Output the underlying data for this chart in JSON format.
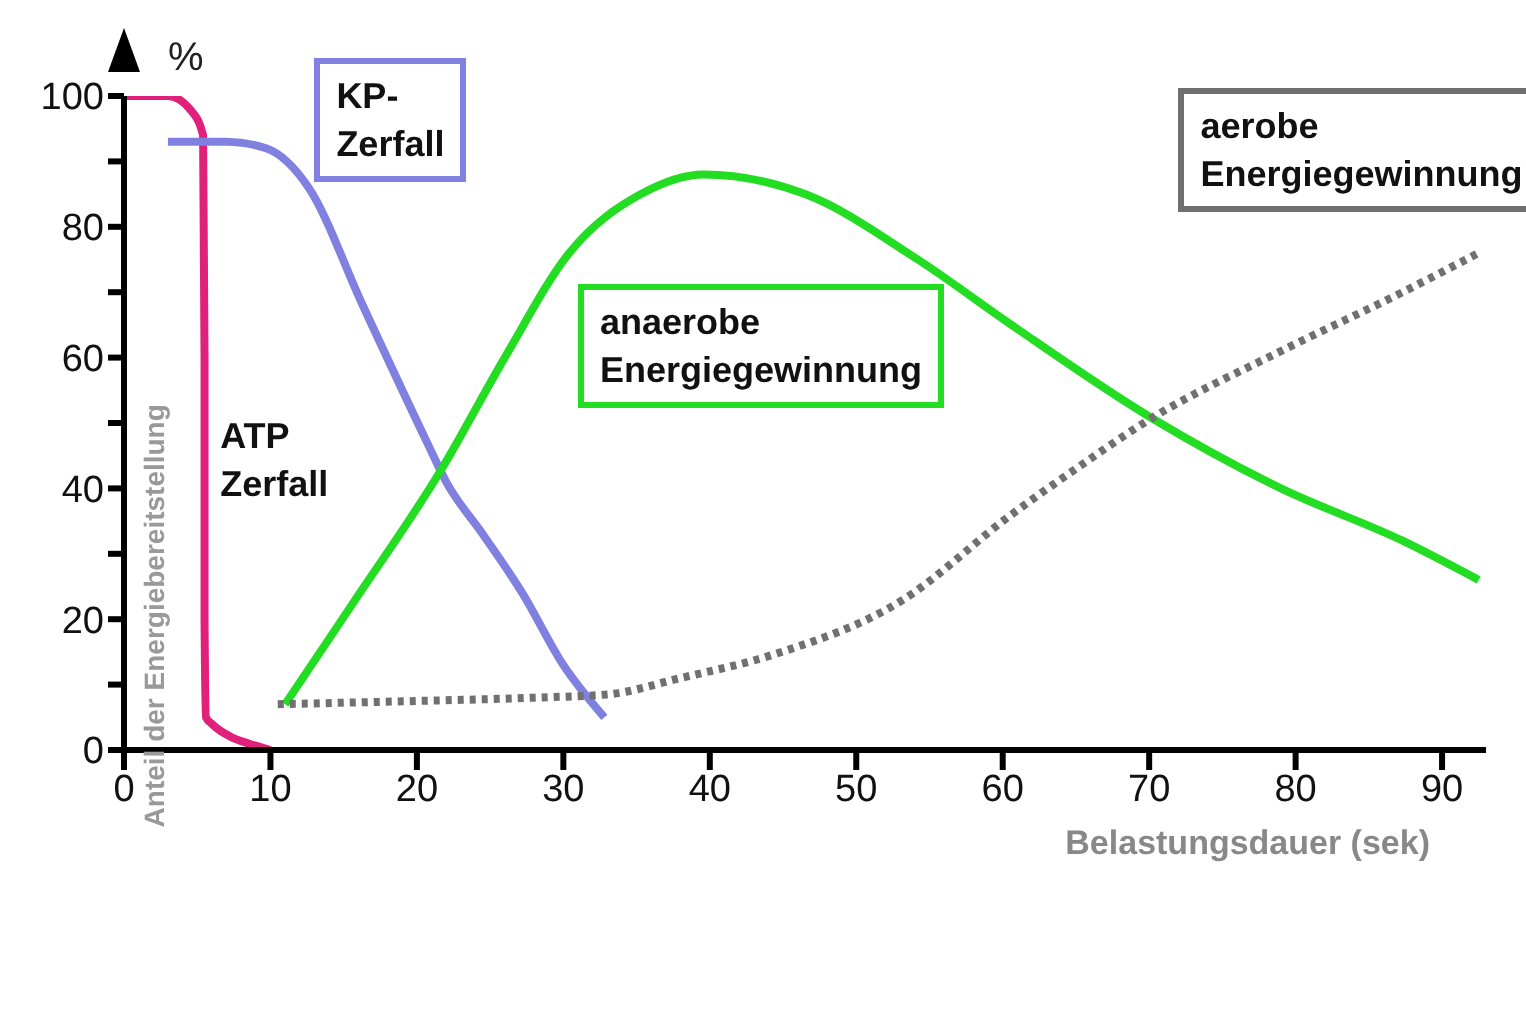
{
  "chart_data": {
    "type": "line",
    "xlabel": "Belastungsdauer  (sek)",
    "ylabel": "Anteil der Energiebereitstellung",
    "annotations": [
      "%"
    ],
    "xlim": [
      0,
      93
    ],
    "ylim": [
      0,
      100
    ],
    "xticks": [
      0,
      10,
      20,
      30,
      40,
      50,
      60,
      70,
      80,
      90
    ],
    "yticks": [
      0,
      {
        "value": 10,
        "label": null
      },
      20,
      {
        "value": 30,
        "label": null
      },
      40,
      {
        "value": 50,
        "label": null
      },
      60,
      {
        "value": 70,
        "label": null
      },
      80,
      {
        "value": 90,
        "label": null
      },
      100
    ],
    "grid": false,
    "legend": false,
    "marker": "none",
    "series": [
      {
        "name": "ATP Zerfall",
        "color": "#e0207a",
        "line_style": "solid",
        "x": [
          0,
          3,
          4.5,
          5.4,
          5.5,
          5.5,
          5.6,
          6,
          7.3,
          8.5,
          10
        ],
        "values": [
          100,
          100,
          98,
          94,
          60,
          20,
          5,
          4,
          2,
          1,
          0
        ]
      },
      {
        "name": "KP- Zerfall",
        "color": "#8080e0",
        "line_style": "solid",
        "x": [
          3,
          7,
          9.7,
          12.6,
          16.3,
          20.7,
          22,
          24.5,
          27.2,
          30,
          32.8
        ],
        "values": [
          93,
          93,
          92,
          86,
          68,
          47,
          41,
          33,
          24,
          13,
          5
        ]
      },
      {
        "name": "anaerobe Energiegewinnung",
        "color": "#22dd22",
        "line_style": "solid",
        "x": [
          11,
          15.5,
          21.7,
          26,
          30.4,
          35.3,
          39.6,
          46.5,
          54.2,
          60.6,
          70,
          79,
          87.3,
          92.5
        ],
        "values": [
          7,
          22,
          43,
          60,
          76,
          85,
          88,
          85,
          75,
          65,
          51,
          40,
          32,
          26
        ]
      },
      {
        "name": "aerobe Energiegewinnung",
        "color": "#707070",
        "line_style": "dotted",
        "x": [
          10.5,
          20,
          28,
          33,
          38,
          44.5,
          53,
          60.6,
          65,
          70,
          79,
          87.3,
          92.5
        ],
        "values": [
          7,
          7.5,
          8,
          8.5,
          11,
          14.7,
          22.7,
          36,
          43,
          50.5,
          61,
          70,
          76
        ]
      }
    ]
  }
}
